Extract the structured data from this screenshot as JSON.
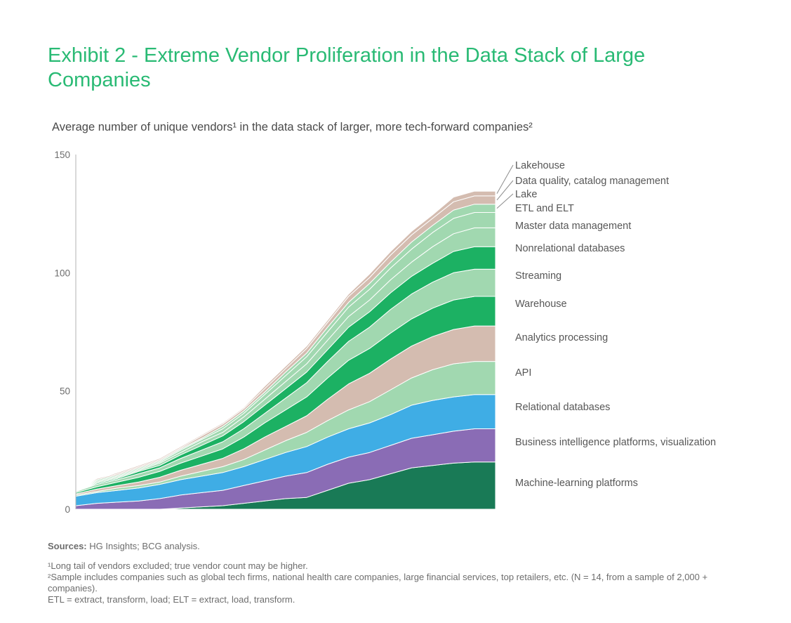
{
  "title": "Exhibit 2 - Extreme Vendor Proliferation in the Data Stack of Large Companies",
  "subtitle": "Average number of unique vendors¹ in the data stack of larger, more tech-forward companies²",
  "sources_label": "Sources:",
  "sources_text": "HG Insights; BCG analysis.",
  "footnotes": [
    "¹Long tail of vendors excluded; true vendor count may be higher.",
    "²Sample includes companies such as global tech firms, national health care companies, large financial services, top retailers, etc. (N = 14, from a sample of 2,000 + companies).",
    "ETL = extract, transform, load; ELT = extract, load, transform."
  ],
  "chart_data": {
    "type": "area",
    "stacked": true,
    "title": "Average number of unique vendors in the data stack of larger, more tech-forward companies",
    "xlabel": "",
    "ylabel": "",
    "ylim": [
      0,
      150
    ],
    "yticks": [
      0,
      50,
      100,
      150
    ],
    "x": [
      0,
      5,
      10,
      15,
      20,
      25,
      30,
      35,
      40,
      45,
      50,
      55,
      60,
      65,
      70,
      75,
      80,
      85,
      90,
      95,
      100
    ],
    "series": [
      {
        "name": "Machine-learning platforms",
        "color": "#197A56",
        "values": [
          0,
          0,
          0,
          0,
          0,
          0.5,
          1,
          1.5,
          2.5,
          3.5,
          4.5,
          5,
          8,
          11,
          12.5,
          15,
          17.5,
          18.5,
          19.5,
          20,
          20
        ]
      },
      {
        "name": "Business intelligence platforms, visualization",
        "color": "#8A6CB5",
        "values": [
          1.5,
          2.5,
          3,
          3.5,
          4.5,
          5.5,
          6,
          6.5,
          7.5,
          8.5,
          9.5,
          10.5,
          11,
          11,
          11.5,
          12,
          12.5,
          13,
          13.5,
          14,
          14
        ]
      },
      {
        "name": "Relational databases",
        "color": "#3FADE5",
        "values": [
          4,
          4.5,
          5,
          5.5,
          6,
          6.5,
          7,
          7.5,
          8,
          9,
          10,
          11,
          11.5,
          12,
          12.5,
          13,
          14,
          14.5,
          14.5,
          14.5,
          14.5
        ]
      },
      {
        "name": "API",
        "color": "#A1D8B0",
        "values": [
          0.5,
          0.5,
          1,
          1,
          1,
          1.5,
          2,
          2.5,
          3,
          4,
          5,
          6,
          7,
          8,
          9,
          10.5,
          11.5,
          13,
          14,
          14,
          14
        ]
      },
      {
        "name": "Analytics processing",
        "color": "#D4BCB0",
        "values": [
          0.5,
          1,
          1,
          1.5,
          2,
          2.5,
          3,
          3.5,
          4.5,
          5.5,
          6,
          7,
          9,
          11,
          12,
          13,
          13.5,
          14,
          14.5,
          15,
          15
        ]
      },
      {
        "name": "Warehouse",
        "color": "#1CB163",
        "values": [
          0.5,
          1,
          1.5,
          2,
          2.5,
          3,
          3.5,
          4,
          5,
          6,
          7,
          8,
          9,
          10,
          10.5,
          11,
          11.5,
          12,
          12.5,
          12.5,
          12.5
        ]
      },
      {
        "name": "Streaming",
        "color": "#A1D8B0",
        "values": [
          0.5,
          1,
          1,
          1.5,
          1.5,
          2,
          2.5,
          3,
          3.5,
          4,
          5,
          6,
          7,
          8,
          9,
          10,
          10.5,
          11,
          11.5,
          11.5,
          11.5
        ]
      },
      {
        "name": "Nonrelational databases",
        "color": "#1CB163",
        "values": [
          0,
          0.5,
          0.5,
          1,
          1,
          1.5,
          2,
          2.5,
          3,
          3.5,
          4,
          4.5,
          5,
          6,
          6.5,
          7,
          7.5,
          8,
          9,
          9.5,
          9.5
        ]
      },
      {
        "name": "Master data management",
        "color": "#A1D8B0",
        "values": [
          0,
          0.5,
          0.5,
          0.5,
          1,
          1,
          1.5,
          1.5,
          2,
          2.5,
          3,
          3.5,
          4,
          4.5,
          5,
          5.5,
          6,
          7,
          7.5,
          8,
          8
        ]
      },
      {
        "name": "ETL and ELT",
        "color": "#A1D8B0",
        "values": [
          0,
          0.5,
          0.5,
          0.5,
          0.5,
          1,
          1,
          1.5,
          1.5,
          2,
          2.5,
          3,
          3.5,
          4,
          4.5,
          5,
          5.5,
          6,
          6.5,
          6.5,
          6.5
        ]
      },
      {
        "name": "Lake",
        "color": "#A1D8B0",
        "values": [
          0,
          0.5,
          0.5,
          0.5,
          0.5,
          0.5,
          0.5,
          1,
          1,
          1,
          1.5,
          1.5,
          2,
          2,
          2.5,
          2.5,
          3,
          3,
          3.5,
          3.5,
          3.5
        ]
      },
      {
        "name": "Data quality, catalog management",
        "color": "#D4BCB0",
        "values": [
          0,
          0.5,
          0.5,
          0.5,
          0.5,
          0.5,
          1,
          1,
          1,
          1.5,
          1.5,
          2,
          2,
          2.5,
          2.5,
          3,
          3,
          3,
          3.5,
          3.5,
          3.5
        ]
      },
      {
        "name": "Lakehouse",
        "color": "#D4BCB0",
        "values": [
          0,
          0,
          0.5,
          0.5,
          0.5,
          0.5,
          0.5,
          0.5,
          0.5,
          1,
          1,
          1,
          1,
          1,
          1.5,
          1.5,
          1.5,
          1.5,
          2,
          2,
          2
        ]
      }
    ]
  }
}
